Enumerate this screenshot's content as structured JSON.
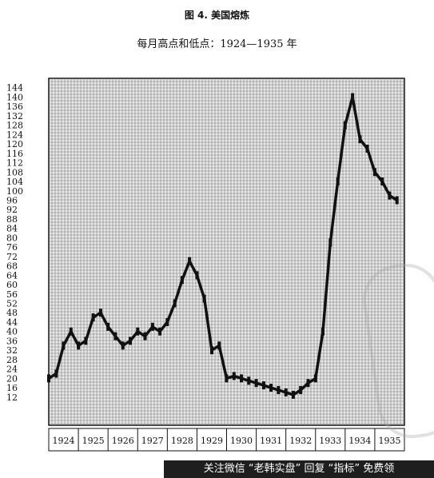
{
  "chart_data": {
    "type": "line",
    "title": "图 4. 美国熔炼",
    "subtitle": "每月高点和低点：1924—1935 年",
    "xlabel": "",
    "ylabel": "",
    "categories": [
      "1924",
      "1925",
      "1926",
      "1927",
      "1928",
      "1929",
      "1930",
      "1931",
      "1932",
      "1933",
      "1934",
      "1935"
    ],
    "yticks": [
      12,
      16,
      20,
      24,
      28,
      32,
      36,
      40,
      44,
      48,
      52,
      56,
      60,
      64,
      68,
      72,
      76,
      80,
      84,
      88,
      92,
      96,
      100,
      104,
      108,
      112,
      116,
      120,
      124,
      128,
      132,
      136,
      140,
      144
    ],
    "ylim": [
      0,
      148
    ],
    "grid": true,
    "legend": "none",
    "series": [
      {
        "name": "",
        "x": [
          1924.0,
          1924.25,
          1924.5,
          1924.75,
          1925.0,
          1925.25,
          1925.5,
          1925.75,
          1926.0,
          1926.25,
          1926.5,
          1926.75,
          1927.0,
          1927.25,
          1927.5,
          1927.75,
          1928.0,
          1928.25,
          1928.5,
          1928.75,
          1929.0,
          1929.25,
          1929.5,
          1929.75,
          1930.0,
          1930.25,
          1930.5,
          1930.75,
          1931.0,
          1931.25,
          1931.5,
          1931.75,
          1932.0,
          1932.25,
          1932.5,
          1932.75,
          1933.0,
          1933.25,
          1933.5,
          1933.75,
          1934.0,
          1934.25,
          1934.5,
          1934.75,
          1935.0,
          1935.25,
          1935.5,
          1935.75
        ],
        "values": [
          20,
          22,
          34,
          40,
          34,
          36,
          46,
          48,
          42,
          38,
          34,
          36,
          40,
          38,
          42,
          40,
          44,
          52,
          62,
          70,
          64,
          54,
          32,
          34,
          20,
          21,
          20,
          19,
          18,
          17,
          16,
          15,
          14,
          13,
          15,
          18,
          20,
          40,
          78,
          104,
          128,
          140,
          122,
          118,
          108,
          104,
          98,
          96
        ]
      }
    ]
  },
  "watermark": "关注微信 “老韩实盘” 回复 “指标” 免费领"
}
